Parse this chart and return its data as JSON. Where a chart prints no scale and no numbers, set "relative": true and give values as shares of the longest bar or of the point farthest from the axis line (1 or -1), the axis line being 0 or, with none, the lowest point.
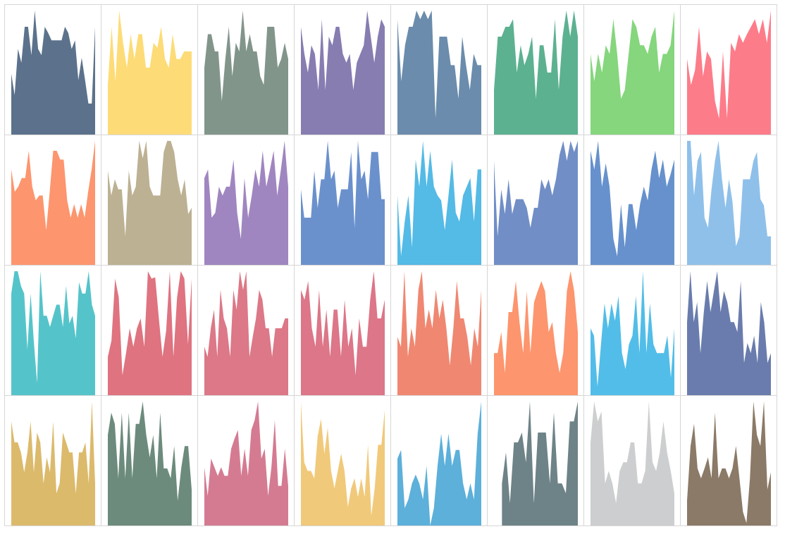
{
  "chart_data": [
    {
      "type": "area",
      "relative": true,
      "color": "#4a6380",
      "categories": [
        null,
        null,
        null,
        null,
        null,
        null,
        null,
        null,
        null,
        null,
        null,
        null,
        null,
        null,
        null,
        null,
        null,
        null,
        null,
        null,
        null,
        null,
        null,
        null,
        null,
        null
      ],
      "values": [
        0.49,
        0.32,
        0.69,
        0.58,
        0.87,
        0.87,
        0.64,
        1,
        0.69,
        0.64,
        0.87,
        0.82,
        0.76,
        0.76,
        0.76,
        0.76,
        0.87,
        0.82,
        0.69,
        0.76,
        0.44,
        0.62,
        0.44,
        0.25,
        0.25,
        0.87
      ]
    },
    {
      "type": "area",
      "relative": true,
      "color": "#fdd868",
      "categories": [
        null,
        null,
        null,
        null,
        null,
        null,
        null,
        null,
        null,
        null,
        null,
        null,
        null,
        null,
        null,
        null,
        null,
        null,
        null,
        null,
        null,
        null,
        null
      ],
      "values": [
        0.4,
        0.87,
        0.43,
        1,
        0.74,
        0.54,
        0.81,
        0.61,
        0.81,
        0.81,
        0.54,
        0.54,
        0.74,
        0.7,
        0.87,
        0.61,
        0.54,
        0.81,
        0.61,
        0.61,
        0.67,
        0.67,
        0.67
      ]
    },
    {
      "type": "area",
      "relative": true,
      "color": "#748a7e",
      "categories": [
        null,
        null,
        null,
        null,
        null,
        null,
        null,
        null,
        null,
        null,
        null,
        null,
        null,
        null,
        null,
        null,
        null,
        null,
        null,
        null,
        null,
        null,
        null,
        null,
        null
      ],
      "values": [
        0.54,
        0.81,
        0.81,
        0.67,
        0.67,
        0.27,
        0.61,
        0.87,
        0.47,
        0.74,
        0.67,
        1,
        0.67,
        0.81,
        0.67,
        0.67,
        0.47,
        0.4,
        0.87,
        0.87,
        0.87,
        0.54,
        0.61,
        0.74,
        0.61
      ]
    },
    {
      "type": "area",
      "relative": true,
      "color": "#7a6fa8",
      "categories": [
        null,
        null,
        null,
        null,
        null,
        null,
        null,
        null,
        null,
        null,
        null,
        null,
        null,
        null,
        null,
        null,
        null,
        null,
        null,
        null,
        null,
        null,
        null,
        null,
        null
      ],
      "values": [
        0.87,
        0.65,
        0.5,
        0.72,
        0.65,
        0.36,
        0.93,
        0.36,
        0.79,
        0.72,
        0.87,
        0.87,
        0.65,
        0.58,
        0.65,
        0.36,
        0.58,
        0.65,
        0.72,
        1,
        0.79,
        0.58,
        0.79,
        0.93,
        0.87
      ]
    },
    {
      "type": "area",
      "relative": true,
      "color": "#5b7fa3",
      "categories": [
        null,
        null,
        null,
        null,
        null,
        null,
        null,
        null,
        null,
        null,
        null,
        null,
        null,
        null,
        null,
        null,
        null,
        null,
        null,
        null,
        null,
        null,
        null
      ],
      "values": [
        0.93,
        0.43,
        0.72,
        0.87,
        0.87,
        1,
        0.93,
        1,
        0.93,
        1,
        0.13,
        0.79,
        0.79,
        0.79,
        0.56,
        0.56,
        0.29,
        0.79,
        0.56,
        0.36,
        0.65,
        0.56,
        0.56
      ]
    },
    {
      "type": "area",
      "relative": true,
      "color": "#4aa885",
      "categories": [
        null,
        null,
        null,
        null,
        null,
        null,
        null,
        null,
        null,
        null,
        null,
        null,
        null,
        null,
        null,
        null,
        null,
        null,
        null,
        null,
        null,
        null,
        null
      ],
      "values": [
        0.36,
        0.79,
        0.79,
        0.87,
        0.87,
        0.93,
        0.5,
        0.72,
        0.56,
        0.65,
        0.79,
        0.29,
        0.72,
        0.72,
        0.5,
        0.5,
        0.93,
        0.36,
        0.79,
        1,
        0.79,
        1,
        0.79
      ]
    },
    {
      "type": "area",
      "relative": true,
      "color": "#78d26f",
      "categories": [
        null,
        null,
        null,
        null,
        null,
        null,
        null,
        null,
        null,
        null,
        null,
        null,
        null,
        null,
        null,
        null,
        null,
        null,
        null,
        null,
        null,
        null,
        null
      ],
      "values": [
        0.65,
        0.43,
        0.65,
        0.5,
        0.72,
        0.65,
        0.93,
        0.65,
        0.29,
        0.36,
        0.65,
        0.93,
        0.87,
        0.72,
        0.72,
        0.65,
        0.79,
        0.87,
        0.5,
        0.65,
        0.65,
        0.72,
        1
      ]
    },
    {
      "type": "area",
      "relative": true,
      "color": "#fd6e7d",
      "categories": [
        null,
        null,
        null,
        null,
        null,
        null,
        null,
        null,
        null,
        null,
        null,
        null,
        null,
        null,
        null,
        null,
        null,
        null,
        null,
        null,
        null,
        null
      ],
      "values": [
        0.61,
        0.4,
        0.52,
        0.87,
        0.47,
        0.67,
        0.61,
        0.27,
        0.13,
        0.67,
        0.13,
        0.74,
        0.67,
        0.81,
        0.74,
        0.81,
        0.87,
        0.93,
        0.81,
        0.93,
        0.74,
        1
      ]
    },
    {
      "type": "area",
      "relative": true,
      "color": "#fd8a5e",
      "categories": [
        null,
        null,
        null,
        null,
        null,
        null,
        null,
        null,
        null,
        null,
        null,
        null,
        null,
        null,
        null,
        null,
        null,
        null,
        null,
        null,
        null,
        null,
        null,
        null,
        null
      ],
      "values": [
        0.77,
        0.59,
        0.63,
        0.7,
        0.7,
        0.92,
        0.63,
        0.52,
        0.56,
        0.56,
        0.28,
        0.59,
        0.92,
        0.92,
        0.85,
        0.85,
        0.52,
        0.38,
        0.49,
        0.38,
        0.49,
        0.38,
        0.59,
        0.77,
        1
      ]
    },
    {
      "type": "area",
      "relative": true,
      "color": "#b5a887",
      "categories": [
        null,
        null,
        null,
        null,
        null,
        null,
        null,
        null,
        null,
        null,
        null,
        null,
        null,
        null,
        null,
        null,
        null,
        null,
        null,
        null,
        null,
        null,
        null,
        null,
        null
      ],
      "values": [
        0.76,
        0.56,
        0.69,
        0.61,
        0.61,
        0.23,
        0.76,
        0.56,
        0.63,
        1,
        0.86,
        1,
        0.63,
        0.56,
        0.56,
        0.56,
        0.91,
        1,
        1,
        0.91,
        0.69,
        0.56,
        0.69,
        0.41,
        0.46
      ]
    },
    {
      "type": "area",
      "relative": true,
      "color": "#9679b9",
      "categories": [
        null,
        null,
        null,
        null,
        null,
        null,
        null,
        null,
        null,
        null,
        null,
        null,
        null,
        null,
        null,
        null,
        null,
        null,
        null,
        null,
        null,
        null,
        null,
        null
      ],
      "values": [
        0.7,
        0.77,
        0.38,
        0.42,
        0.63,
        0.56,
        0.63,
        0.63,
        0.85,
        0.42,
        0.21,
        0.7,
        0.38,
        0.56,
        0.77,
        0.63,
        0.92,
        0.63,
        0.77,
        0.92,
        0.56,
        0.77,
        1,
        0.63
      ]
    },
    {
      "type": "area",
      "relative": true,
      "color": "#5b85c8",
      "categories": [
        null,
        null,
        null,
        null,
        null,
        null,
        null,
        null,
        null,
        null,
        null,
        null,
        null,
        null,
        null,
        null,
        null,
        null,
        null,
        null,
        null,
        null,
        null,
        null,
        null,
        null
      ],
      "values": [
        0.61,
        0.38,
        0.38,
        0.38,
        0.76,
        0.46,
        0.69,
        0.69,
        1,
        0.69,
        0.76,
        0.46,
        0.61,
        0.61,
        0.61,
        0.91,
        0.3,
        1,
        0.69,
        0.76,
        0.53,
        0.91,
        0.91,
        0.91,
        0.53,
        0.53
      ]
    },
    {
      "type": "area",
      "relative": true,
      "color": "#41b3e3",
      "categories": [
        null,
        null,
        null,
        null,
        null,
        null,
        null,
        null,
        null,
        null,
        null,
        null,
        null,
        null,
        null,
        null,
        null,
        null,
        null,
        null,
        null,
        null,
        null,
        null
      ],
      "values": [
        0.56,
        0.07,
        0.35,
        0.56,
        0.14,
        0.85,
        0.63,
        1,
        0.63,
        0.92,
        0.63,
        0.56,
        0.52,
        0.28,
        0.56,
        0.85,
        0.42,
        0.35,
        0.56,
        0.63,
        0.7,
        0.35,
        0.77,
        0.77
      ]
    },
    {
      "type": "area",
      "relative": true,
      "color": "#6282c0",
      "categories": [
        null,
        null,
        null,
        null,
        null,
        null,
        null,
        null,
        null,
        null,
        null,
        null,
        null,
        null,
        null,
        null,
        null,
        null,
        null,
        null,
        null,
        null,
        null,
        null
      ],
      "values": [
        0.84,
        0.23,
        0.61,
        0.41,
        0.69,
        0.41,
        0.53,
        0.53,
        0.53,
        0.46,
        0.3,
        0.46,
        0.46,
        0.69,
        0.61,
        0.69,
        0.56,
        0.69,
        0.89,
        1,
        0.84,
        1,
        0.91,
        1
      ]
    },
    {
      "type": "area",
      "relative": true,
      "color": "#5585c8",
      "categories": [
        null,
        null,
        null,
        null,
        null,
        null,
        null,
        null,
        null,
        null,
        null,
        null,
        null,
        null,
        null,
        null,
        null,
        null,
        null,
        null,
        null,
        null,
        null
      ],
      "values": [
        0.92,
        0.77,
        1,
        0.63,
        0.82,
        0.63,
        0.21,
        0.07,
        0.49,
        0.14,
        0.49,
        0.49,
        0.28,
        0.49,
        0.63,
        0.52,
        0.77,
        0.92,
        0.7,
        0.85,
        0.63,
        0.73,
        0.85
      ]
    },
    {
      "type": "area",
      "relative": true,
      "color": "#83b9e8",
      "categories": [
        null,
        null,
        null,
        null,
        null,
        null,
        null,
        null,
        null,
        null,
        null,
        null,
        null,
        null,
        null,
        null,
        null,
        null,
        null,
        null,
        null,
        null,
        null,
        null,
        null
      ],
      "values": [
        1,
        1,
        0.56,
        0.84,
        0.91,
        0.38,
        0.3,
        0.61,
        0.84,
        1,
        0.69,
        0.46,
        0.69,
        0.51,
        0.15,
        0.23,
        0.69,
        0.69,
        0.69,
        0.84,
        0.91,
        0.53,
        0.48,
        0.23,
        0.23
      ]
    },
    {
      "type": "area",
      "relative": true,
      "color": "#42bec4",
      "categories": [
        null,
        null,
        null,
        null,
        null,
        null,
        null,
        null,
        null,
        null,
        null,
        null,
        null,
        null,
        null,
        null,
        null,
        null,
        null,
        null,
        null,
        null,
        null,
        null,
        null,
        null,
        null
      ],
      "values": [
        0.82,
        1,
        1,
        0.88,
        0.82,
        0.37,
        0.82,
        0.43,
        0.1,
        1,
        0.64,
        0.64,
        0.55,
        0.64,
        0.73,
        0.73,
        0.55,
        0.88,
        0.58,
        0.64,
        0.46,
        0.91,
        0.82,
        0.82,
        1,
        0.73,
        0.64
      ]
    },
    {
      "type": "area",
      "relative": true,
      "color": "#dc6472",
      "categories": [
        null,
        null,
        null,
        null,
        null,
        null,
        null,
        null,
        null,
        null,
        null,
        null,
        null,
        null,
        null,
        null,
        null,
        null,
        null,
        null,
        null,
        null,
        null,
        null
      ],
      "values": [
        0.31,
        0.44,
        0.94,
        0.79,
        0.16,
        0.34,
        0.54,
        0.39,
        0.54,
        0.62,
        0.39,
        1,
        0.94,
        0.95,
        0.62,
        0.31,
        0.52,
        1,
        0.31,
        0.79,
        1,
        0.94,
        0.41,
        0.94
      ]
    },
    {
      "type": "area",
      "relative": true,
      "color": "#d8697a",
      "categories": [
        null,
        null,
        null,
        null,
        null,
        null,
        null,
        null,
        null,
        null,
        null,
        null,
        null,
        null,
        null,
        null,
        null,
        null,
        null,
        null,
        null,
        null,
        null,
        null,
        null,
        null,
        null
      ],
      "values": [
        0.39,
        0.31,
        0.54,
        0.69,
        0.31,
        0.85,
        0.62,
        0.54,
        0.31,
        0.85,
        0.69,
        1,
        0.85,
        1,
        0.31,
        0.47,
        0.62,
        0.85,
        0.77,
        0.54,
        0.54,
        0.31,
        0.54,
        0.54,
        0.54,
        0.62,
        0.62
      ]
    },
    {
      "type": "area",
      "relative": true,
      "color": "#d8677b",
      "categories": [
        null,
        null,
        null,
        null,
        null,
        null,
        null,
        null,
        null,
        null,
        null,
        null,
        null,
        null,
        null,
        null,
        null,
        null,
        null,
        null,
        null,
        null,
        null,
        null
      ],
      "values": [
        0.85,
        0.77,
        0.92,
        0.54,
        0.39,
        0.85,
        0.39,
        0.69,
        0.31,
        0.69,
        0.69,
        0.31,
        0.77,
        0.39,
        0.54,
        0.16,
        0.62,
        0.39,
        0.39,
        0.77,
        1,
        0.62,
        0.62,
        0.77
      ]
    },
    {
      "type": "area",
      "relative": true,
      "color": "#ee7a62",
      "categories": [
        null,
        null,
        null,
        null,
        null,
        null,
        null,
        null,
        null,
        null,
        null,
        null,
        null,
        null,
        null,
        null,
        null,
        null,
        null,
        null,
        null,
        null,
        null,
        null,
        null
      ],
      "values": [
        0.47,
        0.39,
        1,
        0.31,
        0.54,
        0.39,
        0.85,
        1,
        0.54,
        0.69,
        0.54,
        0.85,
        0.62,
        0.77,
        0.54,
        0.24,
        0.54,
        0.92,
        0.62,
        0.62,
        0.47,
        0.24,
        0.54,
        0.39,
        0.85
      ]
    },
    {
      "type": "area",
      "relative": true,
      "color": "#fd8a5e",
      "categories": [
        null,
        null,
        null,
        null,
        null,
        null,
        null,
        null,
        null,
        null,
        null,
        null,
        null,
        null,
        null,
        null,
        null,
        null,
        null,
        null,
        null,
        null,
        null,
        null
      ],
      "values": [
        0.34,
        0.34,
        0.51,
        0.18,
        0.67,
        0.67,
        0.92,
        0.59,
        0.34,
        0.84,
        0.34,
        0.75,
        0.84,
        0.92,
        0.84,
        0.51,
        0.59,
        0.34,
        0.18,
        0.34,
        0.84,
        1,
        0.84,
        0.51
      ]
    },
    {
      "type": "area",
      "relative": true,
      "color": "#3fb6e6",
      "categories": [
        null,
        null,
        null,
        null,
        null,
        null,
        null,
        null,
        null,
        null,
        null,
        null,
        null,
        null,
        null,
        null,
        null,
        null,
        null,
        null,
        null,
        null,
        null,
        null,
        null
      ],
      "values": [
        0.54,
        0.48,
        0.07,
        0.41,
        0.74,
        0.54,
        0.74,
        0.6,
        0.8,
        0.34,
        0.21,
        0.41,
        0.48,
        0.8,
        0.34,
        1,
        0.34,
        0.74,
        0.41,
        0.34,
        0.34,
        0.34,
        0.48,
        0.14,
        0.54
      ]
    },
    {
      "type": "area",
      "relative": true,
      "color": "#5a6ea4",
      "categories": [
        null,
        null,
        null,
        null,
        null,
        null,
        null,
        null,
        null,
        null,
        null,
        null,
        null,
        null,
        null,
        null,
        null,
        null,
        null,
        null,
        null,
        null,
        null,
        null,
        null,
        null
      ],
      "values": [
        0.59,
        1,
        0.59,
        0.75,
        0.34,
        0.67,
        0.92,
        0.67,
        0.84,
        1,
        0.67,
        0.84,
        0.75,
        0.59,
        0.59,
        0.51,
        0.92,
        0.26,
        0.42,
        0.34,
        0.48,
        0.26,
        0.75,
        0.59,
        0.26,
        0.34
      ]
    },
    {
      "type": "area",
      "relative": true,
      "color": "#d8b25c",
      "categories": [
        null,
        null,
        null,
        null,
        null,
        null,
        null,
        null,
        null,
        null,
        null,
        null,
        null,
        null,
        null,
        null,
        null,
        null,
        null,
        null,
        null,
        null,
        null,
        null,
        null,
        null,
        null
      ],
      "values": [
        0.84,
        0.67,
        0.67,
        0.59,
        0.43,
        0.59,
        0.84,
        0.43,
        0.75,
        0.67,
        0.34,
        0.55,
        0.43,
        0.84,
        0.26,
        0.34,
        0.75,
        0.67,
        0.59,
        0.59,
        0.26,
        0.59,
        0.59,
        0.67,
        0.34,
        1,
        0.34
      ]
    },
    {
      "type": "area",
      "relative": true,
      "color": "#5c7e6f",
      "categories": [
        null,
        null,
        null,
        null,
        null,
        null,
        null,
        null,
        null,
        null,
        null,
        null,
        null,
        null,
        null,
        null,
        null,
        null,
        null,
        null,
        null,
        null,
        null,
        null,
        null
      ],
      "values": [
        0.73,
        0.91,
        0.82,
        0.38,
        0.91,
        0.38,
        0.91,
        0.38,
        0.82,
        0.82,
        1,
        0.73,
        0.55,
        0.73,
        0.38,
        0.91,
        0.46,
        0.46,
        0.38,
        0.64,
        0.2,
        0.46,
        0.64,
        0.64,
        0.29
      ]
    },
    {
      "type": "area",
      "relative": true,
      "color": "#cf6d86",
      "categories": [
        null,
        null,
        null,
        null,
        null,
        null,
        null,
        null,
        null,
        null,
        null,
        null,
        null,
        null,
        null,
        null,
        null,
        null,
        null,
        null,
        null,
        null,
        null,
        null,
        null,
        null
      ],
      "values": [
        0.47,
        0.24,
        0.54,
        0.47,
        0.4,
        0.47,
        0.4,
        0.4,
        0.62,
        0.7,
        0.77,
        0.4,
        0.62,
        0.4,
        0.77,
        0.85,
        1,
        0.54,
        0.62,
        0.24,
        0.47,
        0.85,
        0.32,
        0.32,
        0.62,
        0.32
      ]
    },
    {
      "type": "area",
      "relative": true,
      "color": "#f0c36b",
      "categories": [
        null,
        null,
        null,
        null,
        null,
        null,
        null,
        null,
        null,
        null,
        null,
        null,
        null,
        null,
        null,
        null,
        null,
        null,
        null,
        null,
        null,
        null,
        null,
        null,
        null,
        null
      ],
      "values": [
        1,
        0.51,
        0.44,
        0.44,
        0.38,
        0.72,
        0.86,
        0.58,
        0.79,
        0.44,
        0.3,
        0.44,
        0.58,
        0.44,
        0.15,
        0.3,
        0.38,
        0.23,
        0.38,
        0.23,
        0.65,
        0.08,
        0.3,
        0.65,
        0.65,
        0.93
      ]
    },
    {
      "type": "area",
      "relative": true,
      "color": "#4aa7d6",
      "categories": [
        null,
        null,
        null,
        null,
        null,
        null,
        null,
        null,
        null,
        null,
        null,
        null,
        null,
        null,
        null,
        null,
        null,
        null,
        null,
        null,
        null,
        null,
        null,
        null
      ],
      "values": [
        0.54,
        0.61,
        0.14,
        0.21,
        0.34,
        0.41,
        0.34,
        0.21,
        0.48,
        0,
        0.14,
        0.48,
        0.74,
        0.48,
        0.74,
        0.48,
        0.61,
        0.61,
        0.34,
        0.21,
        0.34,
        0.21,
        0.74,
        1
      ]
    },
    {
      "type": "area",
      "relative": true,
      "color": "#5e767a",
      "categories": [
        null,
        null,
        null,
        null,
        null,
        null,
        null,
        null,
        null,
        null,
        null,
        null,
        null,
        null,
        null,
        null,
        null,
        null,
        null,
        null,
        null,
        null
      ],
      "values": [
        null,
        null,
        0.34,
        0.59,
        0.18,
        0.67,
        0.67,
        0.75,
        0.51,
        1,
        0.18,
        0.75,
        0.75,
        0.75,
        0.34,
        0.91,
        0.34,
        0.34,
        0.26,
        0.84,
        0.84,
        1
      ]
    },
    {
      "type": "area",
      "relative": true,
      "color": "#c8c9ca",
      "categories": [
        null,
        null,
        null,
        null,
        null,
        null,
        null,
        null,
        null,
        null,
        null,
        null,
        null,
        null,
        null,
        null,
        null,
        null,
        null,
        null,
        null,
        null,
        null,
        null
      ],
      "values": [
        0.67,
        1,
        0.84,
        0.92,
        0.34,
        0.44,
        0.34,
        0.18,
        0.44,
        0.51,
        0.51,
        0.67,
        0.67,
        0.34,
        0.34,
        0.44,
        1,
        0.51,
        0.44,
        0.59,
        0.84,
        0.59,
        0.44,
        0.26
      ]
    },
    {
      "type": "area",
      "relative": true,
      "color": "#7e6b57",
      "categories": [
        null,
        null,
        null,
        null,
        null,
        null,
        null,
        null,
        null,
        null,
        null,
        null,
        null,
        null,
        null,
        null,
        null,
        null,
        null,
        null,
        null,
        null,
        null,
        null,
        null
      ],
      "values": [
        0.2,
        0.64,
        0.82,
        0.46,
        0.38,
        0.46,
        0.55,
        0.38,
        0.91,
        0.38,
        0.46,
        0.46,
        0.38,
        0.46,
        0.64,
        0.38,
        0.11,
        0.02,
        0.38,
        1,
        0.73,
        0.64,
        1,
        0.29,
        0.43
      ]
    }
  ]
}
